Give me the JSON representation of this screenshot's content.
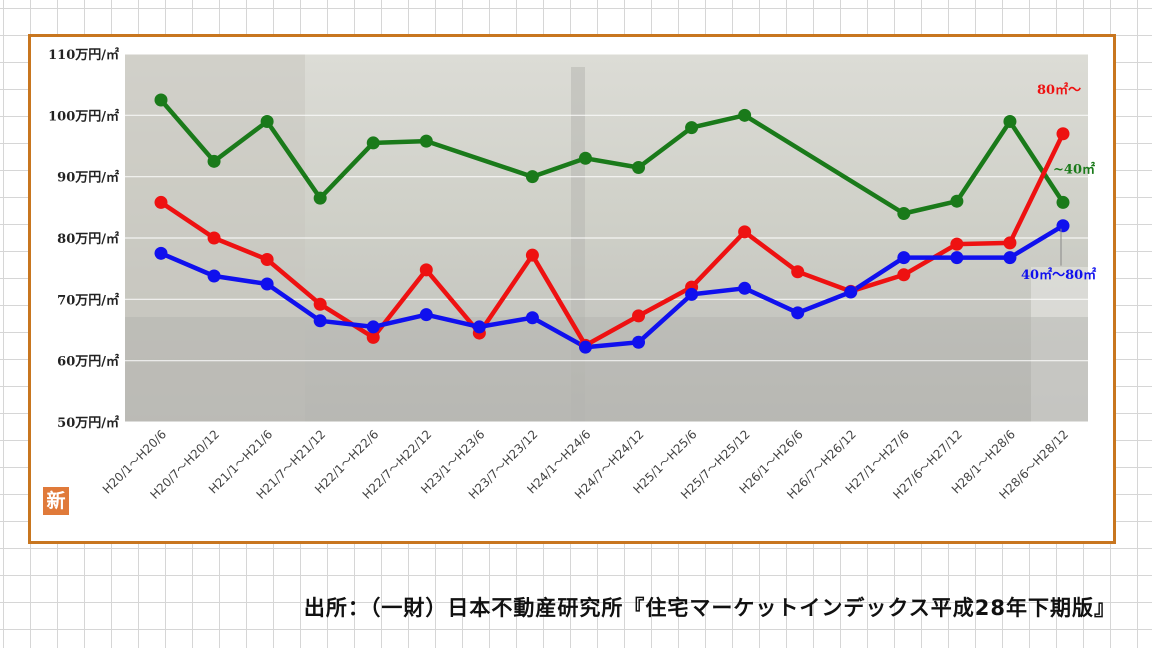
{
  "source_text": "出所：（一財）日本不動産研究所『住宅マーケットインデックス平成28年下期版』",
  "badge": "新",
  "chart_data": {
    "type": "line",
    "categories": [
      "H20/1～H20/6",
      "H20/7～H20/12",
      "H21/1～H21/6",
      "H21/7～H21/12",
      "H22/1～H22/6",
      "H22/7～H22/12",
      "H23/1～H23/6",
      "H23/7～H23/12",
      "H24/1～H24/6",
      "H24/7～H24/12",
      "H25/1～H25/6",
      "H25/7～H25/12",
      "H26/1～H26/6",
      "H26/7～H26/12",
      "H27/1～H27/6",
      "H27/6～H27/12",
      "H28/1～H28/6",
      "H28/6～H28/12"
    ],
    "y_ticks": [
      "50万円/㎡",
      "60万円/㎡",
      "70万円/㎡",
      "80万円/㎡",
      "90万円/㎡",
      "100万円/㎡",
      "110万円/㎡"
    ],
    "ylim": [
      50,
      110
    ],
    "grid": true,
    "series": [
      {
        "name": "~40㎡",
        "color": "#1a7a1a",
        "values": [
          102.5,
          92.5,
          99,
          86.5,
          95.5,
          95.8,
          null,
          90,
          93,
          91.5,
          98,
          100,
          null,
          null,
          84,
          86,
          99,
          85.8
        ]
      },
      {
        "name": "80㎡～",
        "color": "#ee1111",
        "values": [
          85.8,
          80,
          76.5,
          69.2,
          63.8,
          74.8,
          64.5,
          77.2,
          62.5,
          67.3,
          72,
          81,
          74.5,
          71.3,
          74,
          79,
          79.2,
          97
        ]
      },
      {
        "name": "40㎡～80㎡",
        "color": "#1010ee",
        "values": [
          77.5,
          73.8,
          72.5,
          66.5,
          65.5,
          67.5,
          65.5,
          67,
          62.2,
          63,
          70.8,
          71.8,
          67.8,
          71.2,
          76.8,
          76.8,
          76.8,
          82
        ]
      }
    ]
  }
}
